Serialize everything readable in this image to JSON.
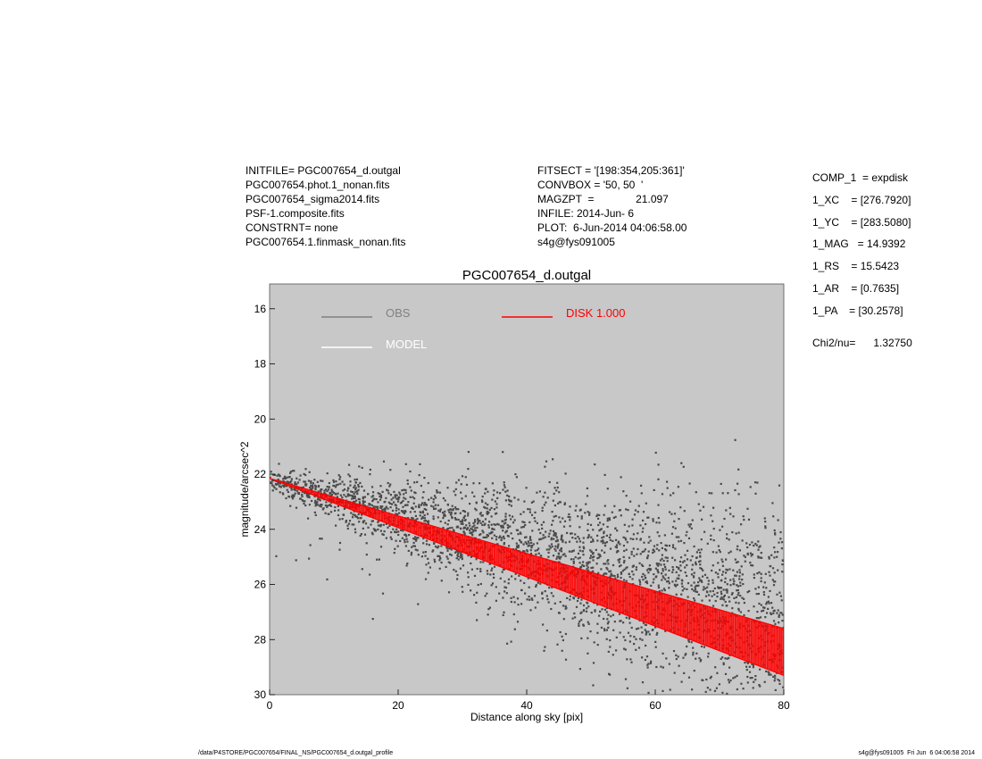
{
  "info_left": [
    "INITFILE= PGC007654_d.outgal",
    "PGC007654.phot.1_nonan.fits",
    "PGC007654_sigma2014.fits",
    "PSF-1.composite.fits",
    "CONSTRNT= none",
    "PGC007654.1.finmask_nonan.fits"
  ],
  "info_mid": [
    "FITSECT = '[198:354,205:361]'",
    "CONVBOX = '50, 50  '",
    "MAGZPT  =              21.097",
    "INFILE: 2014-Jun- 6",
    "PLOT:  6-Jun-2014 04:06:58.00",
    "s4g@fys091005"
  ],
  "info_right": [
    "COMP_1  = expdisk",
    "1_XC    = [276.7920]",
    "1_YC    = [283.5080]",
    "1_MAG   = 14.9392",
    "1_RS    = 15.5423",
    "1_AR    = [0.7635]",
    "1_PA    = [30.2578]"
  ],
  "chi2": "Chi2/nu=      1.32750",
  "footer_left": "/data/P4STORE/PGC007654/FINAL_NS/PGC007654_d.outgal_profile",
  "footer_right": "s4g@fys091005  Fri Jun  6 04:06:58 2014",
  "colors": {
    "panel_bg": "#c8c8c8",
    "obs": "#4a4a4a",
    "model": "#ffffff",
    "disk": "#ff0000"
  },
  "chart_data": {
    "type": "scatter",
    "title": "PGC007654_d.outgal",
    "xlabel": "Distance along sky [pix]",
    "ylabel": "magnitude/arcsec^2",
    "xlim": [
      0,
      80
    ],
    "ylim": [
      30,
      15.1
    ],
    "y_inverted": true,
    "xticks": [
      0,
      20,
      40,
      60,
      80
    ],
    "yticks": [
      16,
      18,
      20,
      22,
      24,
      26,
      28,
      30
    ],
    "grid": false,
    "legend": [
      {
        "label": "OBS",
        "color": "#808080"
      },
      {
        "label": "MODEL",
        "color": "#ffffff"
      },
      {
        "label": "DISK  1.000",
        "color": "#ff0000"
      }
    ],
    "series": [
      {
        "name": "OBS",
        "kind": "scatter",
        "trend_start": [
          0,
          22.2
        ],
        "trend_end": [
          80,
          27.3
        ],
        "scatter_sigma_growth": 0.025
      },
      {
        "name": "DISK  1.000",
        "kind": "band",
        "x": [
          0,
          80
        ],
        "upper_edge": [
          22.15,
          27.6
        ],
        "lower_edge": [
          22.15,
          29.3
        ]
      }
    ]
  }
}
